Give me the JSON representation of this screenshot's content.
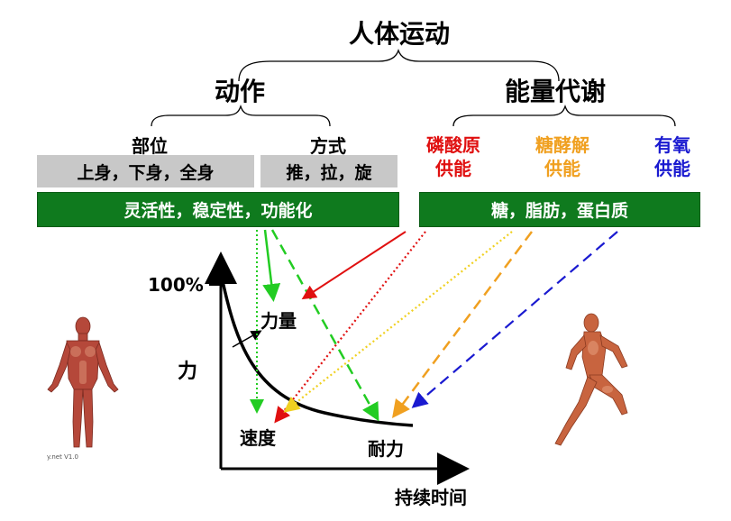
{
  "title": "人体运动",
  "branches": {
    "movement": {
      "label": "动作",
      "sub_left": {
        "label": "部位",
        "box": "上身，下身，全身"
      },
      "sub_right": {
        "label": "方式",
        "box": "推，拉，旋"
      },
      "green_box": "灵活性，稳定性，功能化"
    },
    "metabolism": {
      "label": "能量代谢",
      "systems": [
        {
          "line1": "磷酸原",
          "line2": "供能",
          "color": "#e01010"
        },
        {
          "line1": "糖酵解",
          "line2": "供能",
          "color": "#f0a020"
        },
        {
          "line1": "有氧",
          "line2": "供能",
          "color": "#1a1ad0"
        }
      ],
      "green_box": "糖，脂肪，蛋白质"
    }
  },
  "graph": {
    "y_tick": "100%",
    "y_axis_label": "力",
    "x_axis_label": "持续时间",
    "label_strength": "力量",
    "label_speed": "速度",
    "label_endurance": "耐力"
  },
  "watermark": "y.net V1.0",
  "colors": {
    "green": "#0f7a1e",
    "gray": "#c8c8c8",
    "red": "#e01010",
    "orange": "#f0a020",
    "yellow": "#f0d020",
    "blue": "#1a1ad0",
    "bright_green": "#22cc22"
  }
}
